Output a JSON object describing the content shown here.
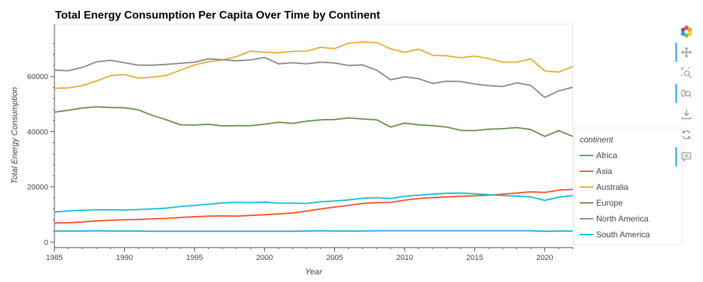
{
  "chart_data": {
    "type": "line",
    "title": "Total Energy Consumption Per Capita Over Time by Continent",
    "xlabel": "Year",
    "ylabel": "Total Energy Consumption",
    "xlim": [
      1985,
      2022
    ],
    "ylim": [
      -2000,
      79000
    ],
    "x_ticks": [
      1985,
      1990,
      1995,
      2000,
      2005,
      2010,
      2015,
      2020
    ],
    "y_ticks": [
      0,
      20000,
      40000,
      60000
    ],
    "grid": false,
    "legend_title": "continent",
    "legend_position": "right",
    "x": [
      1985,
      1986,
      1987,
      1988,
      1989,
      1990,
      1991,
      1992,
      1993,
      1994,
      1995,
      1996,
      1997,
      1998,
      1999,
      2000,
      2001,
      2002,
      2003,
      2004,
      2005,
      2006,
      2007,
      2008,
      2009,
      2010,
      2011,
      2012,
      2013,
      2014,
      2015,
      2016,
      2017,
      2018,
      2019,
      2020,
      2021,
      2022
    ],
    "series": [
      {
        "name": "Africa",
        "color": "#30a2da",
        "values": [
          4000,
          4000,
          4000,
          4100,
          4000,
          4000,
          4000,
          3900,
          3900,
          3900,
          3900,
          3900,
          3900,
          3900,
          3900,
          3900,
          3900,
          3900,
          4000,
          4100,
          4000,
          4000,
          4000,
          4100,
          4100,
          4100,
          4100,
          4100,
          4100,
          4100,
          4100,
          4100,
          4100,
          4100,
          4100,
          3900,
          4000,
          4000
        ]
      },
      {
        "name": "Asia",
        "color": "#fc4f30",
        "values": [
          6900,
          7000,
          7300,
          7700,
          7900,
          8100,
          8200,
          8400,
          8600,
          8900,
          9200,
          9400,
          9500,
          9400,
          9700,
          9900,
          10200,
          10500,
          11200,
          12000,
          12700,
          13300,
          14000,
          14300,
          14400,
          15200,
          15800,
          16100,
          16400,
          16600,
          16800,
          17000,
          17400,
          17800,
          18200,
          18000,
          18800,
          19100
        ]
      },
      {
        "name": "Australia",
        "color": "#e5ae38",
        "values": [
          55700,
          55900,
          56700,
          58400,
          60300,
          60700,
          59400,
          59800,
          60400,
          62300,
          64200,
          65400,
          66000,
          67200,
          69200,
          68800,
          68600,
          69100,
          69200,
          70600,
          70100,
          72100,
          72500,
          72300,
          70000,
          68800,
          69900,
          67700,
          67500,
          66800,
          67400,
          66500,
          65200,
          65200,
          66400,
          62000,
          61600,
          63600
        ]
      },
      {
        "name": "Europe",
        "color": "#6d904f",
        "values": [
          47100,
          47800,
          48600,
          49000,
          48800,
          48700,
          47900,
          45900,
          44300,
          42500,
          42400,
          42700,
          42100,
          42200,
          42200,
          42700,
          43400,
          43000,
          43800,
          44300,
          44400,
          45000,
          44600,
          44300,
          41700,
          43100,
          42500,
          42200,
          41700,
          40500,
          40400,
          40900,
          41100,
          41500,
          40800,
          38300,
          40400,
          38300
        ]
      },
      {
        "name": "North America",
        "color": "#8b8b8b",
        "values": [
          62300,
          62100,
          63300,
          65300,
          65900,
          65000,
          64100,
          64100,
          64400,
          64800,
          65200,
          66400,
          66100,
          65700,
          66000,
          66900,
          64600,
          65000,
          64600,
          65200,
          64900,
          64000,
          64200,
          62300,
          58800,
          59900,
          59200,
          57500,
          58300,
          58200,
          57300,
          56700,
          56400,
          57700,
          56800,
          52400,
          54800,
          56100
        ]
      },
      {
        "name": "South America",
        "color": "#17becf",
        "values": [
          10900,
          11300,
          11500,
          11700,
          11700,
          11600,
          11800,
          12000,
          12300,
          12900,
          13300,
          13700,
          14200,
          14400,
          14300,
          14500,
          14100,
          14100,
          14000,
          14600,
          14900,
          15300,
          15900,
          16100,
          15800,
          16600,
          17000,
          17400,
          17700,
          17800,
          17500,
          17200,
          16900,
          16700,
          16400,
          15100,
          16300,
          16900
        ]
      }
    ]
  }
}
